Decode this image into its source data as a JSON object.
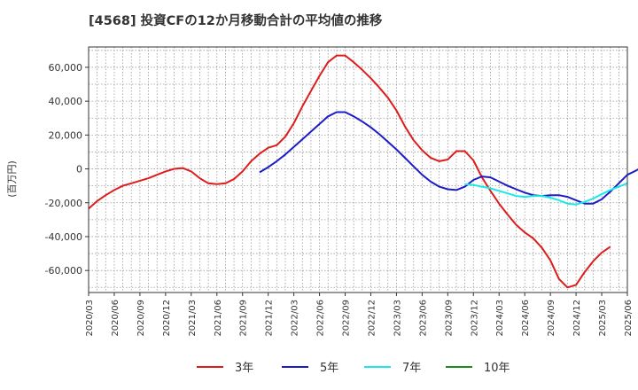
{
  "chart_data": {
    "type": "line",
    "title": "[4568]  投資CFの12か月移動合計の平均値の推移",
    "ylabel": "(百万円)",
    "xlabel": "",
    "ylim": [
      -73000,
      72000
    ],
    "yticks": [
      60000,
      40000,
      20000,
      0,
      -20000,
      -40000,
      -60000
    ],
    "ytick_labels": [
      "60,000",
      "40,000",
      "20,000",
      "0",
      "-20,000",
      "-40,000",
      "-60,000"
    ],
    "xlim": [
      "2020-03",
      "2025-06"
    ],
    "xticks": [
      "2020/03",
      "2020/06",
      "2020/09",
      "2020/12",
      "2021/03",
      "2021/06",
      "2021/09",
      "2021/12",
      "2022/03",
      "2022/06",
      "2022/09",
      "2022/12",
      "2023/03",
      "2023/06",
      "2023/09",
      "2023/12",
      "2024/03",
      "2024/06",
      "2024/09",
      "2024/12",
      "2025/03",
      "2025/06"
    ],
    "grid": true,
    "legend_position": "bottom",
    "series": [
      {
        "name": "3年",
        "color": "#dd1c1c",
        "start": "2020-03",
        "values": [
          -23500,
          -19000,
          -15500,
          -12500,
          -10000,
          -8500,
          -7000,
          -5500,
          -3500,
          -1500,
          0,
          500,
          -1500,
          -5500,
          -8500,
          -9000,
          -8500,
          -6000,
          -1500,
          4500,
          9000,
          12500,
          14000,
          19000,
          27000,
          37000,
          46000,
          55000,
          63000,
          67000,
          67000,
          63000,
          58500,
          53500,
          48000,
          42000,
          34500,
          25000,
          17000,
          11000,
          6500,
          4500,
          5500,
          10500,
          10500,
          5000,
          -5000,
          -13000,
          -20500,
          -27000,
          -33000,
          -37500,
          -41000,
          -46500,
          -54000,
          -65000,
          -70000,
          -68500,
          -61000,
          -54500,
          -49500,
          -46000
        ]
      },
      {
        "name": "5年",
        "color": "#1c1cc8",
        "start": "2021-11",
        "values": [
          -2000,
          1000,
          4500,
          8500,
          13000,
          17500,
          22000,
          26500,
          31000,
          33500,
          33500,
          31000,
          28000,
          24500,
          20500,
          16000,
          11500,
          6500,
          1500,
          -3500,
          -7500,
          -10500,
          -12000,
          -12500,
          -10500,
          -6500,
          -4500,
          -5000,
          -7500,
          -10000,
          -12000,
          -14000,
          -15500,
          -16000,
          -15500,
          -15500,
          -16500,
          -18500,
          -20500,
          -20500,
          -18000,
          -13500,
          -8500,
          -3500,
          -1000,
          2000
        ]
      },
      {
        "name": "7年",
        "color": "#1ce8e8",
        "start": "2023-11",
        "values": [
          -9000,
          -9500,
          -10500,
          -11500,
          -13000,
          -14500,
          -16000,
          -16500,
          -16000,
          -16000,
          -17000,
          -18500,
          -20500,
          -21000,
          -19500,
          -17500,
          -15000,
          -12500,
          -10500,
          -8500
        ]
      },
      {
        "name": "10年",
        "color": "#1c8c1c",
        "start": "2025-03",
        "values": []
      }
    ]
  }
}
